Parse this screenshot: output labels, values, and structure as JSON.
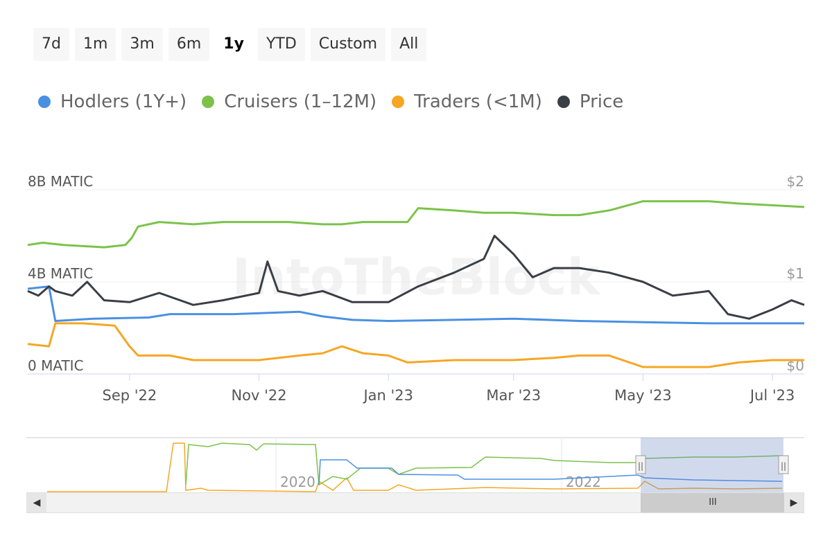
{
  "range_selector": {
    "buttons": [
      "7d",
      "1m",
      "3m",
      "6m",
      "1y",
      "YTD",
      "Custom",
      "All"
    ],
    "active": "1y"
  },
  "colors": {
    "hodlers": "#4a90e2",
    "cruisers": "#7cc24a",
    "traders": "#f5a623",
    "price": "#3a3f45"
  },
  "chart_data": {
    "type": "line",
    "watermark": "IntoTheBlock",
    "legend_position": "top-left",
    "grid": true,
    "x_ticks": [
      "Sep '22",
      "Nov '22",
      "Jan '23",
      "Mar '23",
      "May '23",
      "Jul '23"
    ],
    "x_range": [
      "2022-07-15",
      "2023-07-16"
    ],
    "y_left": {
      "ticks": [
        "0 MATIC",
        "4B MATIC",
        "8B MATIC"
      ],
      "range_billions": [
        0,
        8
      ]
    },
    "y_right": {
      "ticks": [
        "$0",
        "$1",
        "$2"
      ],
      "range": [
        0,
        2
      ]
    },
    "series": [
      {
        "name": "Hodlers (1Y+)",
        "axis": "left",
        "unit": "B MATIC",
        "points": [
          [
            "2022-07-15",
            3.7
          ],
          [
            "2022-07-25",
            3.8
          ],
          [
            "2022-07-28",
            2.3
          ],
          [
            "2022-08-15",
            2.4
          ],
          [
            "2022-09-10",
            2.45
          ],
          [
            "2022-09-20",
            2.6
          ],
          [
            "2022-10-20",
            2.6
          ],
          [
            "2022-11-20",
            2.7
          ],
          [
            "2022-12-01",
            2.5
          ],
          [
            "2022-12-15",
            2.35
          ],
          [
            "2023-01-01",
            2.3
          ],
          [
            "2023-02-01",
            2.35
          ],
          [
            "2023-03-01",
            2.4
          ],
          [
            "2023-04-01",
            2.3
          ],
          [
            "2023-05-01",
            2.25
          ],
          [
            "2023-06-01",
            2.2
          ],
          [
            "2023-07-16",
            2.2
          ]
        ]
      },
      {
        "name": "Cruisers (1–12M)",
        "axis": "left",
        "unit": "B MATIC",
        "points": [
          [
            "2022-07-15",
            5.6
          ],
          [
            "2022-07-22",
            5.7
          ],
          [
            "2022-08-01",
            5.6
          ],
          [
            "2022-08-20",
            5.5
          ],
          [
            "2022-08-30",
            5.6
          ],
          [
            "2022-09-02",
            5.9
          ],
          [
            "2022-09-05",
            6.4
          ],
          [
            "2022-09-15",
            6.6
          ],
          [
            "2022-10-01",
            6.5
          ],
          [
            "2022-10-15",
            6.6
          ],
          [
            "2022-11-01",
            6.6
          ],
          [
            "2022-11-15",
            6.6
          ],
          [
            "2022-12-01",
            6.5
          ],
          [
            "2022-12-10",
            6.5
          ],
          [
            "2022-12-20",
            6.6
          ],
          [
            "2023-01-10",
            6.6
          ],
          [
            "2023-01-15",
            7.2
          ],
          [
            "2023-02-01",
            7.1
          ],
          [
            "2023-02-15",
            7.0
          ],
          [
            "2023-03-01",
            7.0
          ],
          [
            "2023-03-20",
            6.9
          ],
          [
            "2023-04-01",
            6.9
          ],
          [
            "2023-04-15",
            7.1
          ],
          [
            "2023-05-01",
            7.5
          ],
          [
            "2023-05-10",
            7.5
          ],
          [
            "2023-06-01",
            7.5
          ],
          [
            "2023-06-15",
            7.4
          ],
          [
            "2023-07-16",
            7.25
          ]
        ]
      },
      {
        "name": "Traders (<1M)",
        "axis": "left",
        "unit": "B MATIC",
        "points": [
          [
            "2022-07-15",
            1.3
          ],
          [
            "2022-07-25",
            1.2
          ],
          [
            "2022-07-28",
            2.2
          ],
          [
            "2022-08-10",
            2.2
          ],
          [
            "2022-08-25",
            2.1
          ],
          [
            "2022-09-01",
            1.2
          ],
          [
            "2022-09-05",
            0.8
          ],
          [
            "2022-09-20",
            0.8
          ],
          [
            "2022-10-01",
            0.6
          ],
          [
            "2022-10-15",
            0.6
          ],
          [
            "2022-11-01",
            0.6
          ],
          [
            "2022-11-20",
            0.8
          ],
          [
            "2022-12-01",
            0.9
          ],
          [
            "2022-12-10",
            1.2
          ],
          [
            "2022-12-20",
            0.9
          ],
          [
            "2023-01-01",
            0.8
          ],
          [
            "2023-01-10",
            0.5
          ],
          [
            "2023-02-01",
            0.6
          ],
          [
            "2023-03-01",
            0.6
          ],
          [
            "2023-03-20",
            0.7
          ],
          [
            "2023-04-01",
            0.8
          ],
          [
            "2023-04-15",
            0.8
          ],
          [
            "2023-05-01",
            0.3
          ],
          [
            "2023-06-01",
            0.3
          ],
          [
            "2023-06-15",
            0.5
          ],
          [
            "2023-07-01",
            0.6
          ],
          [
            "2023-07-16",
            0.6
          ]
        ]
      },
      {
        "name": "Price",
        "axis": "right",
        "unit": "USD",
        "points": [
          [
            "2022-07-15",
            0.9
          ],
          [
            "2022-07-20",
            0.85
          ],
          [
            "2022-07-25",
            0.95
          ],
          [
            "2022-07-28",
            0.9
          ],
          [
            "2022-08-05",
            0.85
          ],
          [
            "2022-08-12",
            1.0
          ],
          [
            "2022-08-20",
            0.8
          ],
          [
            "2022-09-01",
            0.78
          ],
          [
            "2022-09-15",
            0.88
          ],
          [
            "2022-10-01",
            0.75
          ],
          [
            "2022-10-15",
            0.8
          ],
          [
            "2022-11-01",
            0.88
          ],
          [
            "2022-11-05",
            1.22
          ],
          [
            "2022-11-10",
            0.9
          ],
          [
            "2022-11-20",
            0.85
          ],
          [
            "2022-12-01",
            0.9
          ],
          [
            "2022-12-15",
            0.78
          ],
          [
            "2023-01-01",
            0.78
          ],
          [
            "2023-01-15",
            0.95
          ],
          [
            "2023-02-01",
            1.1
          ],
          [
            "2023-02-15",
            1.25
          ],
          [
            "2023-02-20",
            1.5
          ],
          [
            "2023-03-01",
            1.3
          ],
          [
            "2023-03-10",
            1.05
          ],
          [
            "2023-03-20",
            1.15
          ],
          [
            "2023-04-01",
            1.15
          ],
          [
            "2023-04-15",
            1.1
          ],
          [
            "2023-05-01",
            1.0
          ],
          [
            "2023-05-15",
            0.85
          ],
          [
            "2023-06-01",
            0.9
          ],
          [
            "2023-06-10",
            0.65
          ],
          [
            "2023-06-20",
            0.6
          ],
          [
            "2023-07-01",
            0.7
          ],
          [
            "2023-07-10",
            0.8
          ],
          [
            "2023-07-16",
            0.75
          ]
        ]
      }
    ]
  },
  "navigator": {
    "year_labels": [
      "2020",
      "2022"
    ],
    "scroll_thumb": "III",
    "scroll_left": "◀",
    "scroll_right": "▶",
    "handle": "||"
  }
}
